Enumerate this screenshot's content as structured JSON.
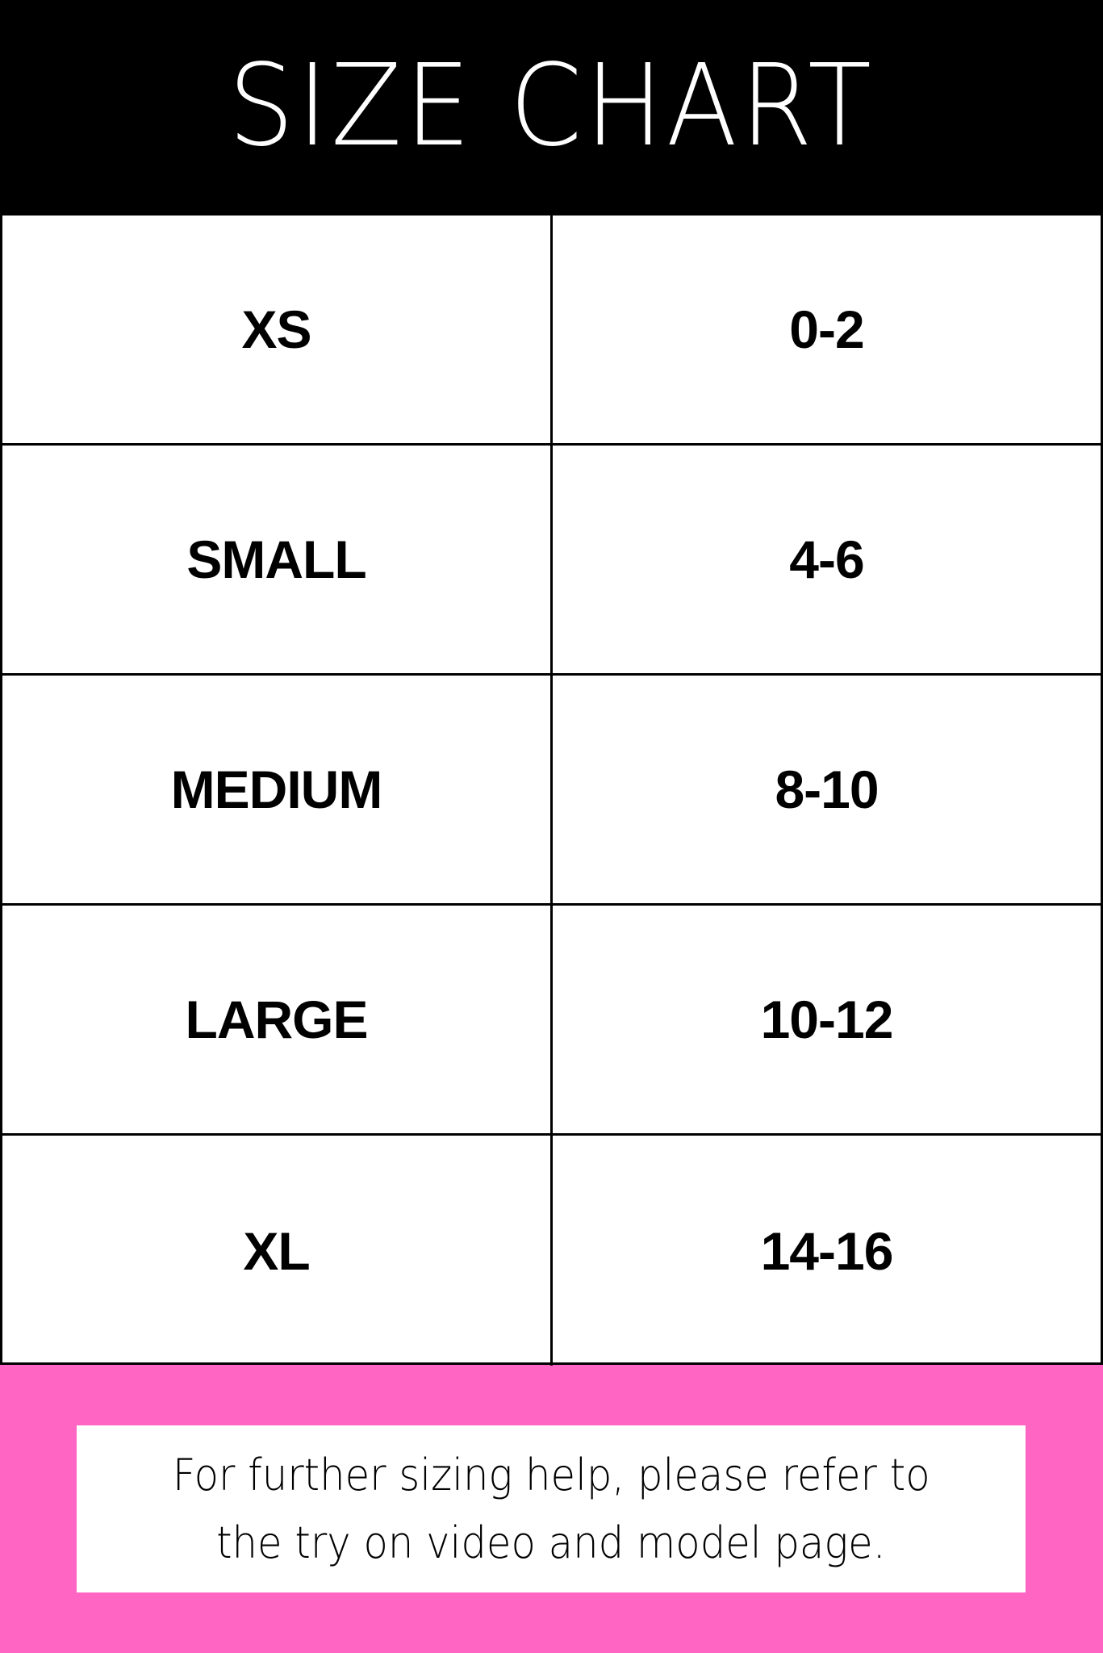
{
  "header": {
    "title": "SIZE CHART"
  },
  "colors": {
    "header_bg": "#000000",
    "footer_bg": "#ff66c4",
    "table_bg": "#ffffff"
  },
  "sizes": [
    {
      "size": "XS",
      "range": "0-2"
    },
    {
      "size": "SMALL",
      "range": "4-6"
    },
    {
      "size": "MEDIUM",
      "range": "8-10"
    },
    {
      "size": "LARGE",
      "range": "10-12"
    },
    {
      "size": "XL",
      "range": "14-16"
    }
  ],
  "footer": {
    "line1": "For further sizing help, please refer to",
    "line2": "the try on video and model page."
  }
}
